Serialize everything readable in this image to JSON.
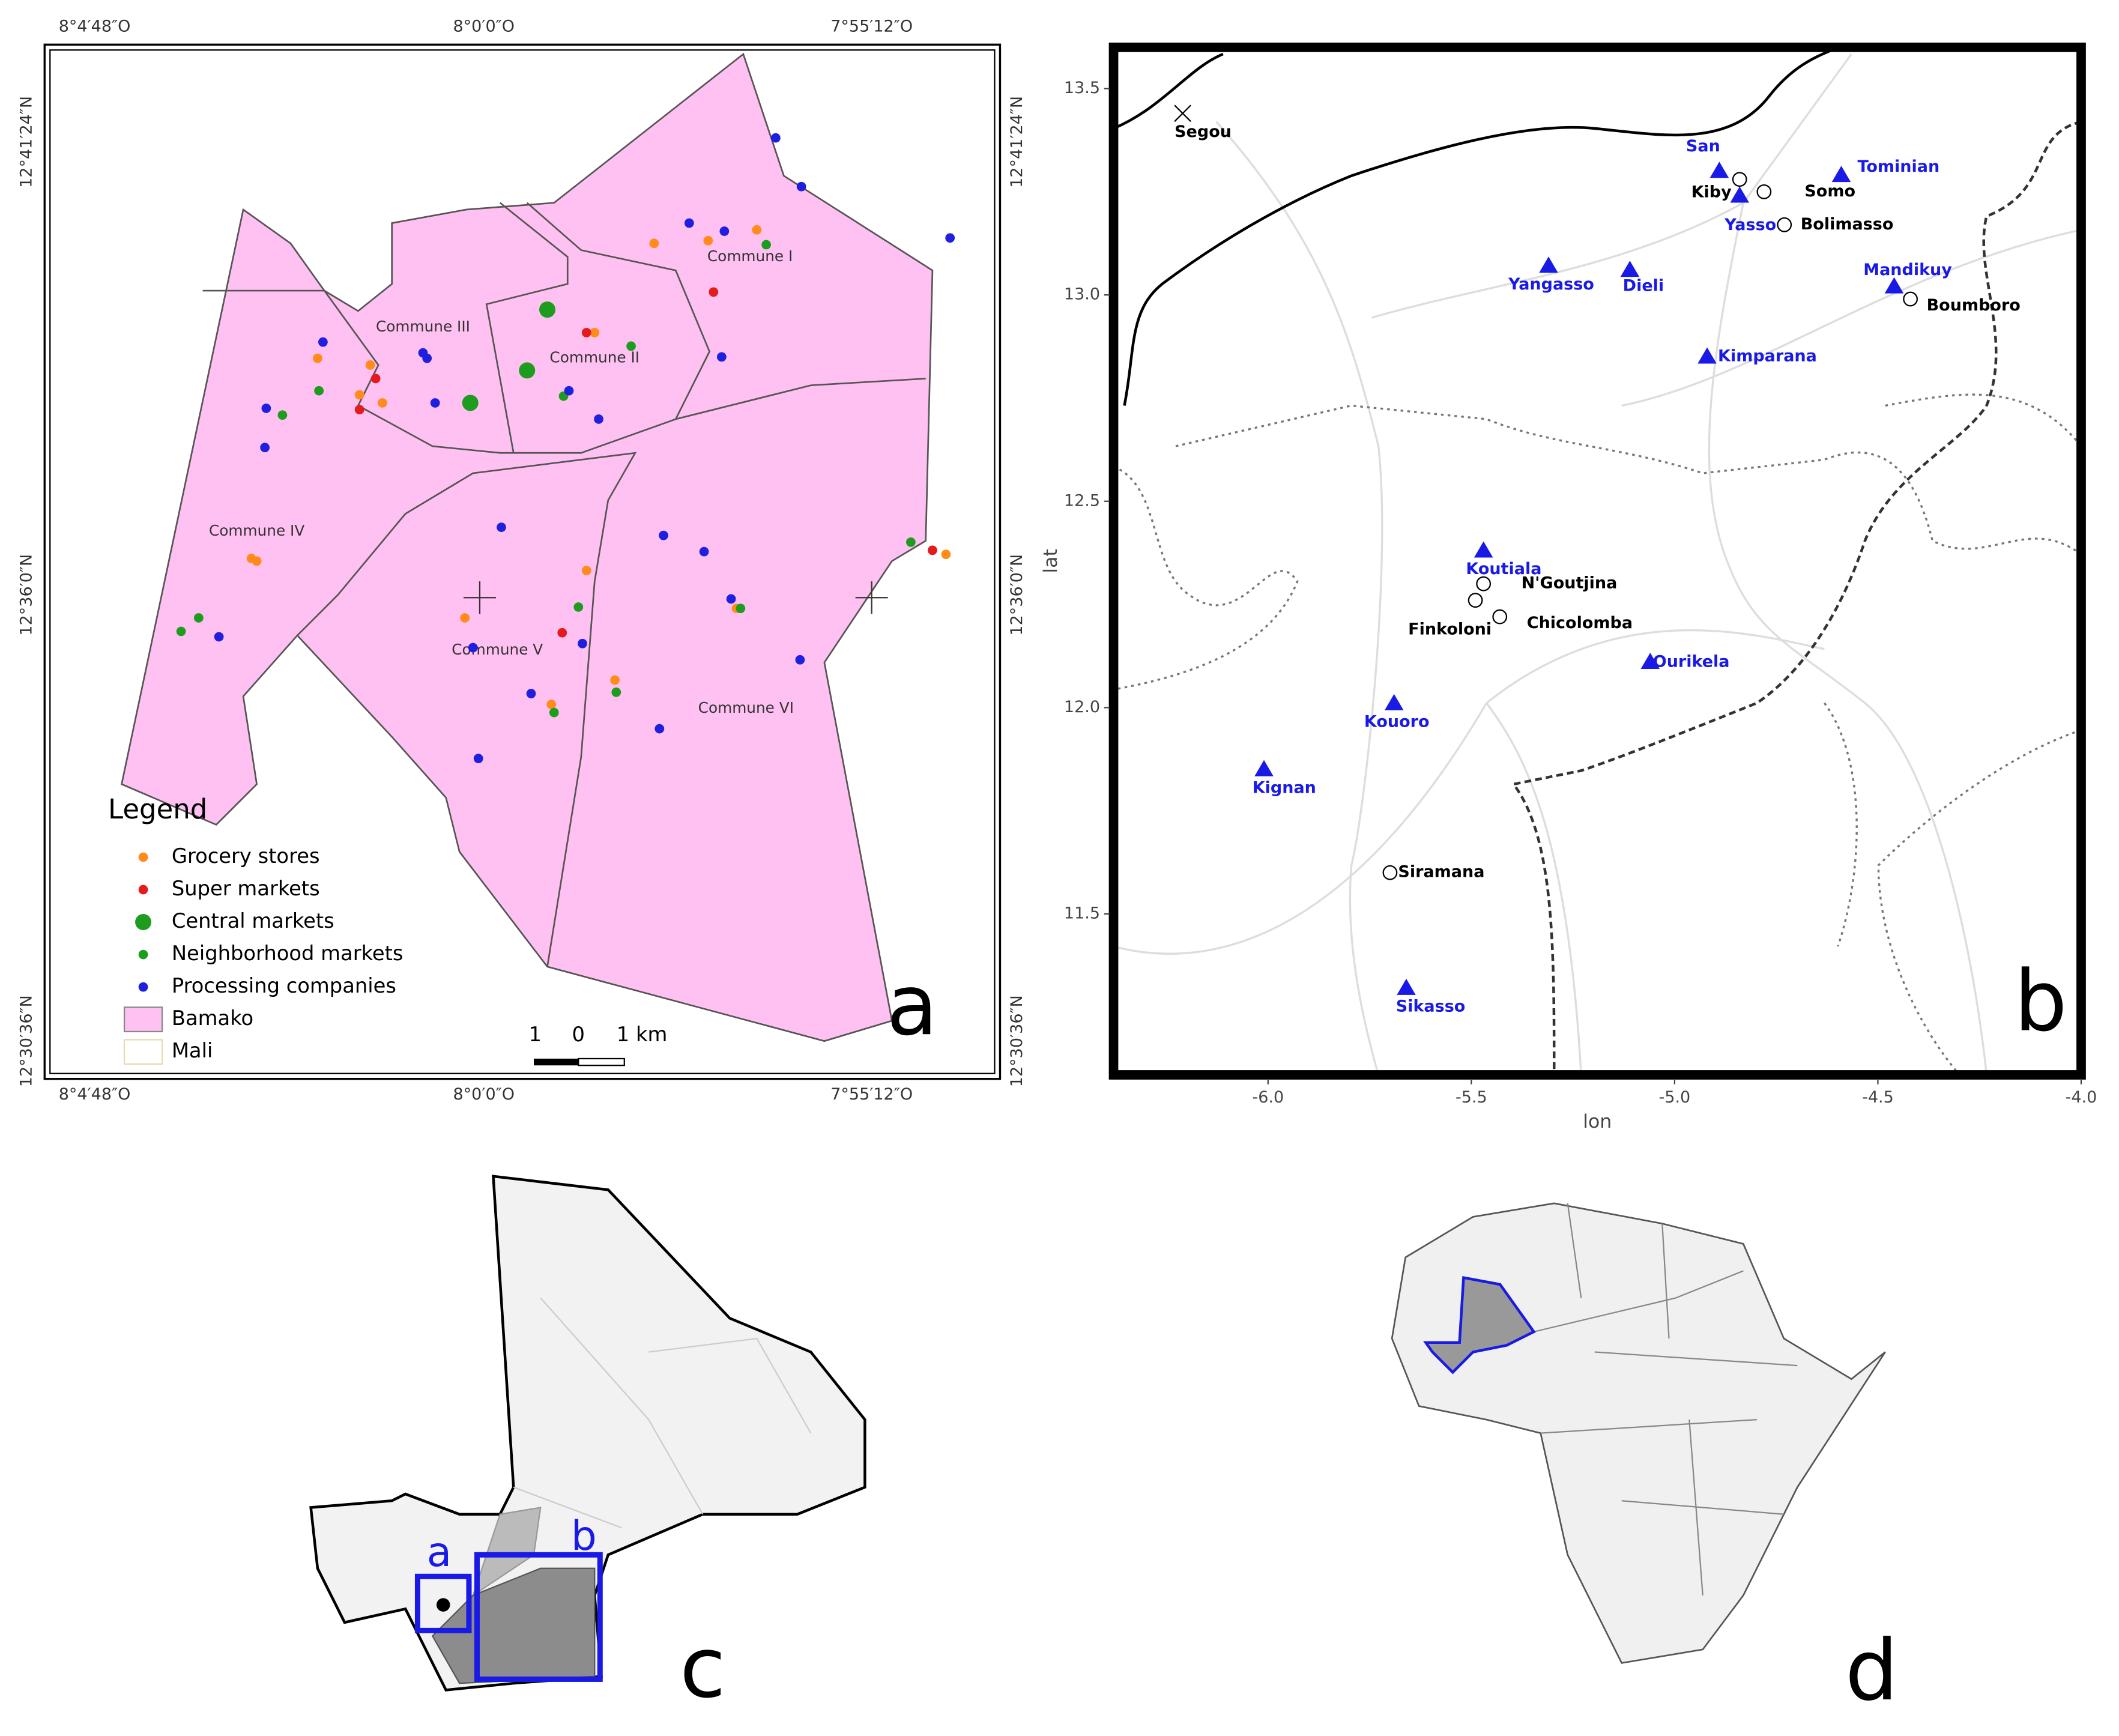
{
  "panel_a": {
    "label": "a",
    "x_ticks": [
      "8°4′48″O",
      "8°0′0″O",
      "7°55′12″O"
    ],
    "y_ticks": [
      "12°41′24″N",
      "12°36′0″N",
      "12°30′36″N"
    ],
    "communes": [
      "Commune I",
      "Commune II",
      "Commune III",
      "Commune IV",
      "Commune V",
      "Commune VI"
    ],
    "legend": {
      "title": "Legend",
      "items": [
        {
          "label": "Grocery stores",
          "color": "#ff8c1a"
        },
        {
          "label": "Super markets",
          "color": "#e41a1c"
        },
        {
          "label": "Central markets",
          "color": "#1e9c1e"
        },
        {
          "label": "Neighborhood markets",
          "color": "#1e9c1e"
        },
        {
          "label": "Processing companies",
          "color": "#1f1fe0"
        },
        {
          "label": "Bamako",
          "color": "#ffc0f2"
        },
        {
          "label": "Mali",
          "color": "#e8d9b0"
        }
      ]
    },
    "scale_labels": [
      "1",
      "0",
      "1 km"
    ]
  },
  "panel_b": {
    "label": "b",
    "xlabel": "lon",
    "ylabel": "lat",
    "xlim": [
      -6.38,
      -4.0
    ],
    "ylim": [
      11.11,
      13.6
    ],
    "xticks": [
      {
        "value": -6,
        "label": "-6.0"
      },
      -5.5,
      {
        "value": -5,
        "label": "-5.0"
      },
      -4.5,
      {
        "value": -4,
        "label": "-4.0"
      }
    ],
    "yticks": [
      11.5,
      {
        "value": 12,
        "label": "12.0"
      },
      12.5,
      {
        "value": 13,
        "label": "13.0"
      },
      13.5
    ],
    "station_color": "#1a1ae6",
    "stations": [
      {
        "name": "San",
        "lon": -4.89,
        "lat": 13.3
      },
      {
        "name": "Tominian",
        "lon": -4.59,
        "lat": 13.29
      },
      {
        "name": "Yasso",
        "lon": -4.84,
        "lat": 13.24
      },
      {
        "name": "Yangasso",
        "lon": -5.31,
        "lat": 13.07
      },
      {
        "name": "Dieli",
        "lon": -5.11,
        "lat": 13.06
      },
      {
        "name": "Mandikuy",
        "lon": -4.46,
        "lat": 13.02
      },
      {
        "name": "Kimparana",
        "lon": -4.92,
        "lat": 12.85
      },
      {
        "name": "Koutiala",
        "lon": -5.47,
        "lat": 12.38
      },
      {
        "name": "Ourikela",
        "lon": -5.06,
        "lat": 12.11
      },
      {
        "name": "Kouoro",
        "lon": -5.69,
        "lat": 12.01
      },
      {
        "name": "Kignan",
        "lon": -6.01,
        "lat": 11.85
      },
      {
        "name": "Sikasso",
        "lon": -5.66,
        "lat": 11.32
      }
    ],
    "villages": [
      {
        "name": "Kiby",
        "lon": -4.84,
        "lat": 13.28
      },
      {
        "name": "Somo",
        "lon": -4.78,
        "lat": 13.25
      },
      {
        "name": "Bolimasso",
        "lon": -4.73,
        "lat": 13.17
      },
      {
        "name": "Boumboro",
        "lon": -4.42,
        "lat": 12.99
      },
      {
        "name": "N'Goutjina",
        "lon": -5.47,
        "lat": 12.3
      },
      {
        "name": "Finkoloni",
        "lon": -5.49,
        "lat": 12.26
      },
      {
        "name": "Chicolomba",
        "lon": -5.43,
        "lat": 12.22
      },
      {
        "name": "Siramana",
        "lon": -5.7,
        "lat": 11.6
      }
    ],
    "cities": [
      {
        "name": "Segou",
        "lon": -6.21,
        "lat": 13.44
      }
    ]
  },
  "panel_c": {
    "label": "c",
    "box_labels": [
      "a",
      "b"
    ]
  },
  "panel_d": {
    "label": "d"
  }
}
